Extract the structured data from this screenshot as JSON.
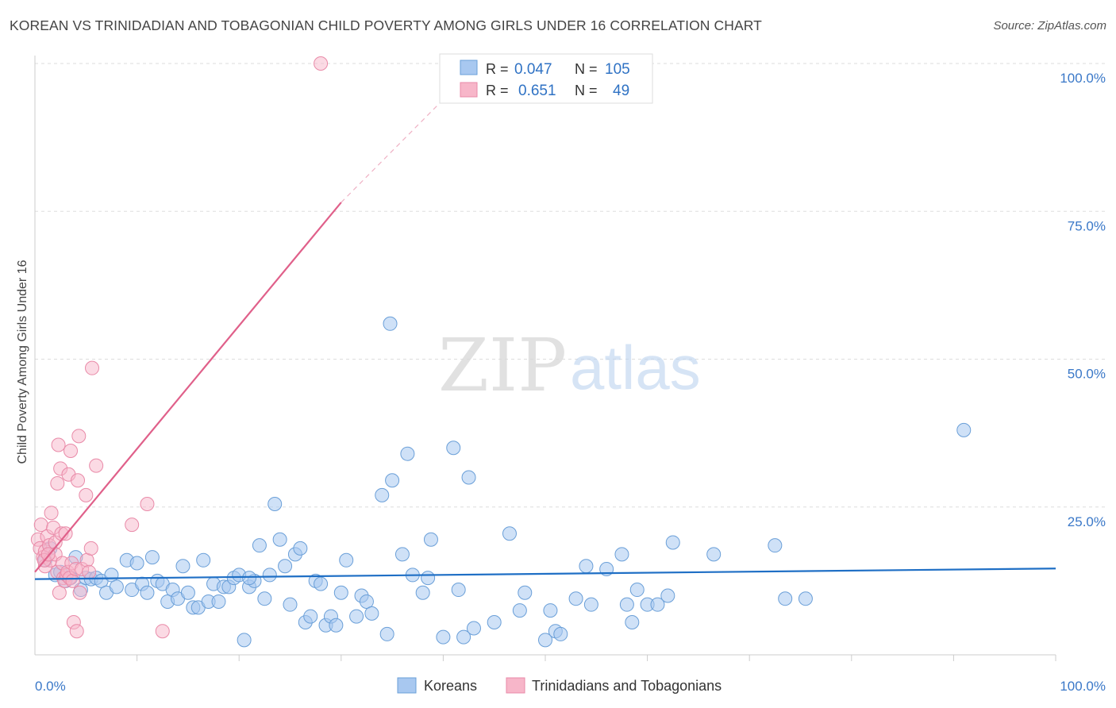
{
  "title": "KOREAN VS TRINIDADIAN AND TOBAGONIAN CHILD POVERTY AMONG GIRLS UNDER 16 CORRELATION CHART",
  "source": "Source: ZipAtlas.com",
  "watermark": {
    "zip": "ZIP",
    "atlas": "atlas"
  },
  "colors": {
    "korean_fill": "#a8c8f0",
    "korean_stroke": "#6a9fd8",
    "korean_line": "#1f6fc5",
    "trini_fill": "#f7b6c9",
    "trini_stroke": "#e98aa8",
    "trini_line": "#e0608a",
    "axis_text": "#3a78c8",
    "grid": "#dddddd"
  },
  "stats": {
    "korean": {
      "r_label": "R =",
      "r": "0.047",
      "n_label": "N =",
      "n": "105"
    },
    "trini": {
      "r_label": "R =",
      "r": "0.651",
      "n_label": "N =",
      "n": "49"
    }
  },
  "chart_data": {
    "type": "scatter",
    "title": "KOREAN VS TRINIDADIAN AND TOBAGONIAN CHILD POVERTY AMONG GIRLS UNDER 16 CORRELATION CHART",
    "xlabel": "",
    "ylabel": "Child Poverty Among Girls Under 16",
    "xlim": [
      0,
      100
    ],
    "ylim": [
      0,
      100
    ],
    "x_tick_labels": [
      "0.0%",
      "100.0%"
    ],
    "y_tick_labels": [
      "25.0%",
      "50.0%",
      "75.0%",
      "100.0%"
    ],
    "y_ticks": [
      25,
      50,
      75,
      100
    ],
    "legend": [
      "Koreans",
      "Trinidadians and Tobagonians"
    ],
    "series": [
      {
        "name": "Koreans",
        "r": 0.047,
        "n": 105,
        "trend": {
          "x0": 0,
          "y0": 12.8,
          "x1": 100,
          "y1": 14.6
        },
        "points": [
          [
            1.0,
            16.0
          ],
          [
            1.5,
            18.0
          ],
          [
            2.0,
            13.5
          ],
          [
            2.5,
            14.0
          ],
          [
            3.0,
            12.5
          ],
          [
            3.5,
            13.0
          ],
          [
            4.0,
            16.5
          ],
          [
            4.5,
            11.0
          ],
          [
            5.0,
            13.0
          ],
          [
            5.5,
            12.8
          ],
          [
            6.0,
            13.0
          ],
          [
            6.5,
            12.5
          ],
          [
            7.0,
            10.5
          ],
          [
            7.5,
            13.5
          ],
          [
            8.0,
            11.5
          ],
          [
            9.0,
            16.0
          ],
          [
            9.5,
            11.0
          ],
          [
            10.0,
            15.5
          ],
          [
            10.5,
            12.0
          ],
          [
            11.0,
            10.5
          ],
          [
            11.5,
            16.5
          ],
          [
            12.0,
            12.5
          ],
          [
            12.5,
            12.0
          ],
          [
            13.0,
            9.0
          ],
          [
            13.5,
            11.0
          ],
          [
            14.0,
            9.5
          ],
          [
            14.5,
            15.0
          ],
          [
            15.0,
            10.5
          ],
          [
            15.5,
            8.0
          ],
          [
            16.0,
            8.0
          ],
          [
            16.5,
            16.0
          ],
          [
            17.0,
            9.0
          ],
          [
            17.5,
            12.0
          ],
          [
            18.0,
            9.0
          ],
          [
            18.5,
            11.5
          ],
          [
            19.0,
            11.5
          ],
          [
            19.5,
            13.0
          ],
          [
            20.0,
            13.5
          ],
          [
            20.5,
            2.5
          ],
          [
            21.0,
            11.5
          ],
          [
            21.5,
            12.5
          ],
          [
            22.0,
            18.5
          ],
          [
            22.5,
            9.5
          ],
          [
            23.0,
            13.5
          ],
          [
            23.5,
            25.5
          ],
          [
            24.0,
            19.5
          ],
          [
            24.5,
            15.0
          ],
          [
            25.0,
            8.5
          ],
          [
            25.5,
            17.0
          ],
          [
            26.0,
            18.0
          ],
          [
            26.5,
            5.5
          ],
          [
            27.0,
            6.5
          ],
          [
            27.5,
            12.5
          ],
          [
            28.0,
            12.0
          ],
          [
            28.5,
            5.0
          ],
          [
            29.0,
            6.5
          ],
          [
            29.5,
            5.0
          ],
          [
            30.0,
            10.5
          ],
          [
            30.5,
            16.0
          ],
          [
            31.5,
            6.5
          ],
          [
            32.0,
            10.0
          ],
          [
            32.5,
            9.0
          ],
          [
            34.0,
            27.0
          ],
          [
            34.5,
            3.5
          ],
          [
            34.8,
            56.0
          ],
          [
            35.0,
            29.5
          ],
          [
            36.0,
            17.0
          ],
          [
            36.5,
            34.0
          ],
          [
            37.0,
            13.5
          ],
          [
            38.0,
            10.5
          ],
          [
            38.5,
            13.0
          ],
          [
            38.8,
            19.5
          ],
          [
            40.0,
            3.0
          ],
          [
            41.0,
            35.0
          ],
          [
            41.5,
            11.0
          ],
          [
            42.5,
            30.0
          ],
          [
            43.0,
            4.5
          ],
          [
            45.0,
            5.5
          ],
          [
            46.5,
            20.5
          ],
          [
            47.5,
            7.5
          ],
          [
            48.0,
            10.5
          ],
          [
            50.0,
            2.5
          ],
          [
            50.5,
            7.5
          ],
          [
            51.0,
            4.0
          ],
          [
            51.5,
            3.5
          ],
          [
            53.0,
            9.5
          ],
          [
            54.0,
            15.0
          ],
          [
            54.5,
            8.5
          ],
          [
            56.0,
            14.5
          ],
          [
            57.5,
            17.0
          ],
          [
            58.0,
            8.5
          ],
          [
            58.5,
            5.5
          ],
          [
            59.0,
            11.0
          ],
          [
            60.0,
            8.5
          ],
          [
            61.0,
            8.5
          ],
          [
            62.0,
            10.0
          ],
          [
            62.5,
            19.0
          ],
          [
            66.5,
            17.0
          ],
          [
            72.5,
            18.5
          ],
          [
            73.5,
            9.5
          ],
          [
            75.5,
            9.5
          ],
          [
            91.0,
            38.0
          ],
          [
            42.0,
            3.0
          ],
          [
            33.0,
            7.0
          ],
          [
            21.0,
            13.0
          ]
        ]
      },
      {
        "name": "Trinidadians and Tobagonians",
        "r": 0.651,
        "n": 49,
        "trend": {
          "x0": 0,
          "y0": 14.0,
          "x1": 30,
          "y1": 76.5,
          "dash_x1": 43.5,
          "dash_y1": 100
        },
        "points": [
          [
            0.3,
            19.5
          ],
          [
            0.5,
            18.0
          ],
          [
            0.6,
            22.0
          ],
          [
            0.8,
            16.5
          ],
          [
            1.0,
            17.5
          ],
          [
            1.0,
            15.0
          ],
          [
            1.2,
            20.0
          ],
          [
            1.4,
            18.5
          ],
          [
            1.5,
            16.0
          ],
          [
            1.6,
            24.0
          ],
          [
            1.8,
            21.5
          ],
          [
            2.0,
            19.0
          ],
          [
            2.0,
            17.0
          ],
          [
            2.2,
            14.0
          ],
          [
            2.2,
            29.0
          ],
          [
            2.3,
            35.5
          ],
          [
            2.4,
            10.5
          ],
          [
            2.5,
            31.5
          ],
          [
            2.6,
            20.5
          ],
          [
            2.7,
            15.5
          ],
          [
            2.8,
            13.0
          ],
          [
            2.9,
            12.5
          ],
          [
            3.0,
            20.5
          ],
          [
            3.1,
            13.5
          ],
          [
            3.2,
            14.0
          ],
          [
            3.3,
            30.5
          ],
          [
            3.4,
            13.0
          ],
          [
            3.5,
            34.5
          ],
          [
            3.6,
            15.5
          ],
          [
            3.7,
            12.5
          ],
          [
            3.8,
            5.5
          ],
          [
            4.0,
            14.5
          ],
          [
            4.1,
            4.0
          ],
          [
            4.2,
            29.5
          ],
          [
            4.3,
            37.0
          ],
          [
            4.4,
            10.5
          ],
          [
            4.6,
            14.5
          ],
          [
            5.0,
            27.0
          ],
          [
            5.1,
            16.0
          ],
          [
            5.3,
            14.0
          ],
          [
            5.5,
            18.0
          ],
          [
            5.6,
            48.5
          ],
          [
            6.0,
            32.0
          ],
          [
            9.5,
            22.0
          ],
          [
            11.0,
            25.5
          ],
          [
            12.5,
            4.0
          ],
          [
            28.0,
            100.0
          ],
          [
            0.9,
            16.0
          ],
          [
            1.3,
            17.0
          ]
        ]
      }
    ]
  }
}
